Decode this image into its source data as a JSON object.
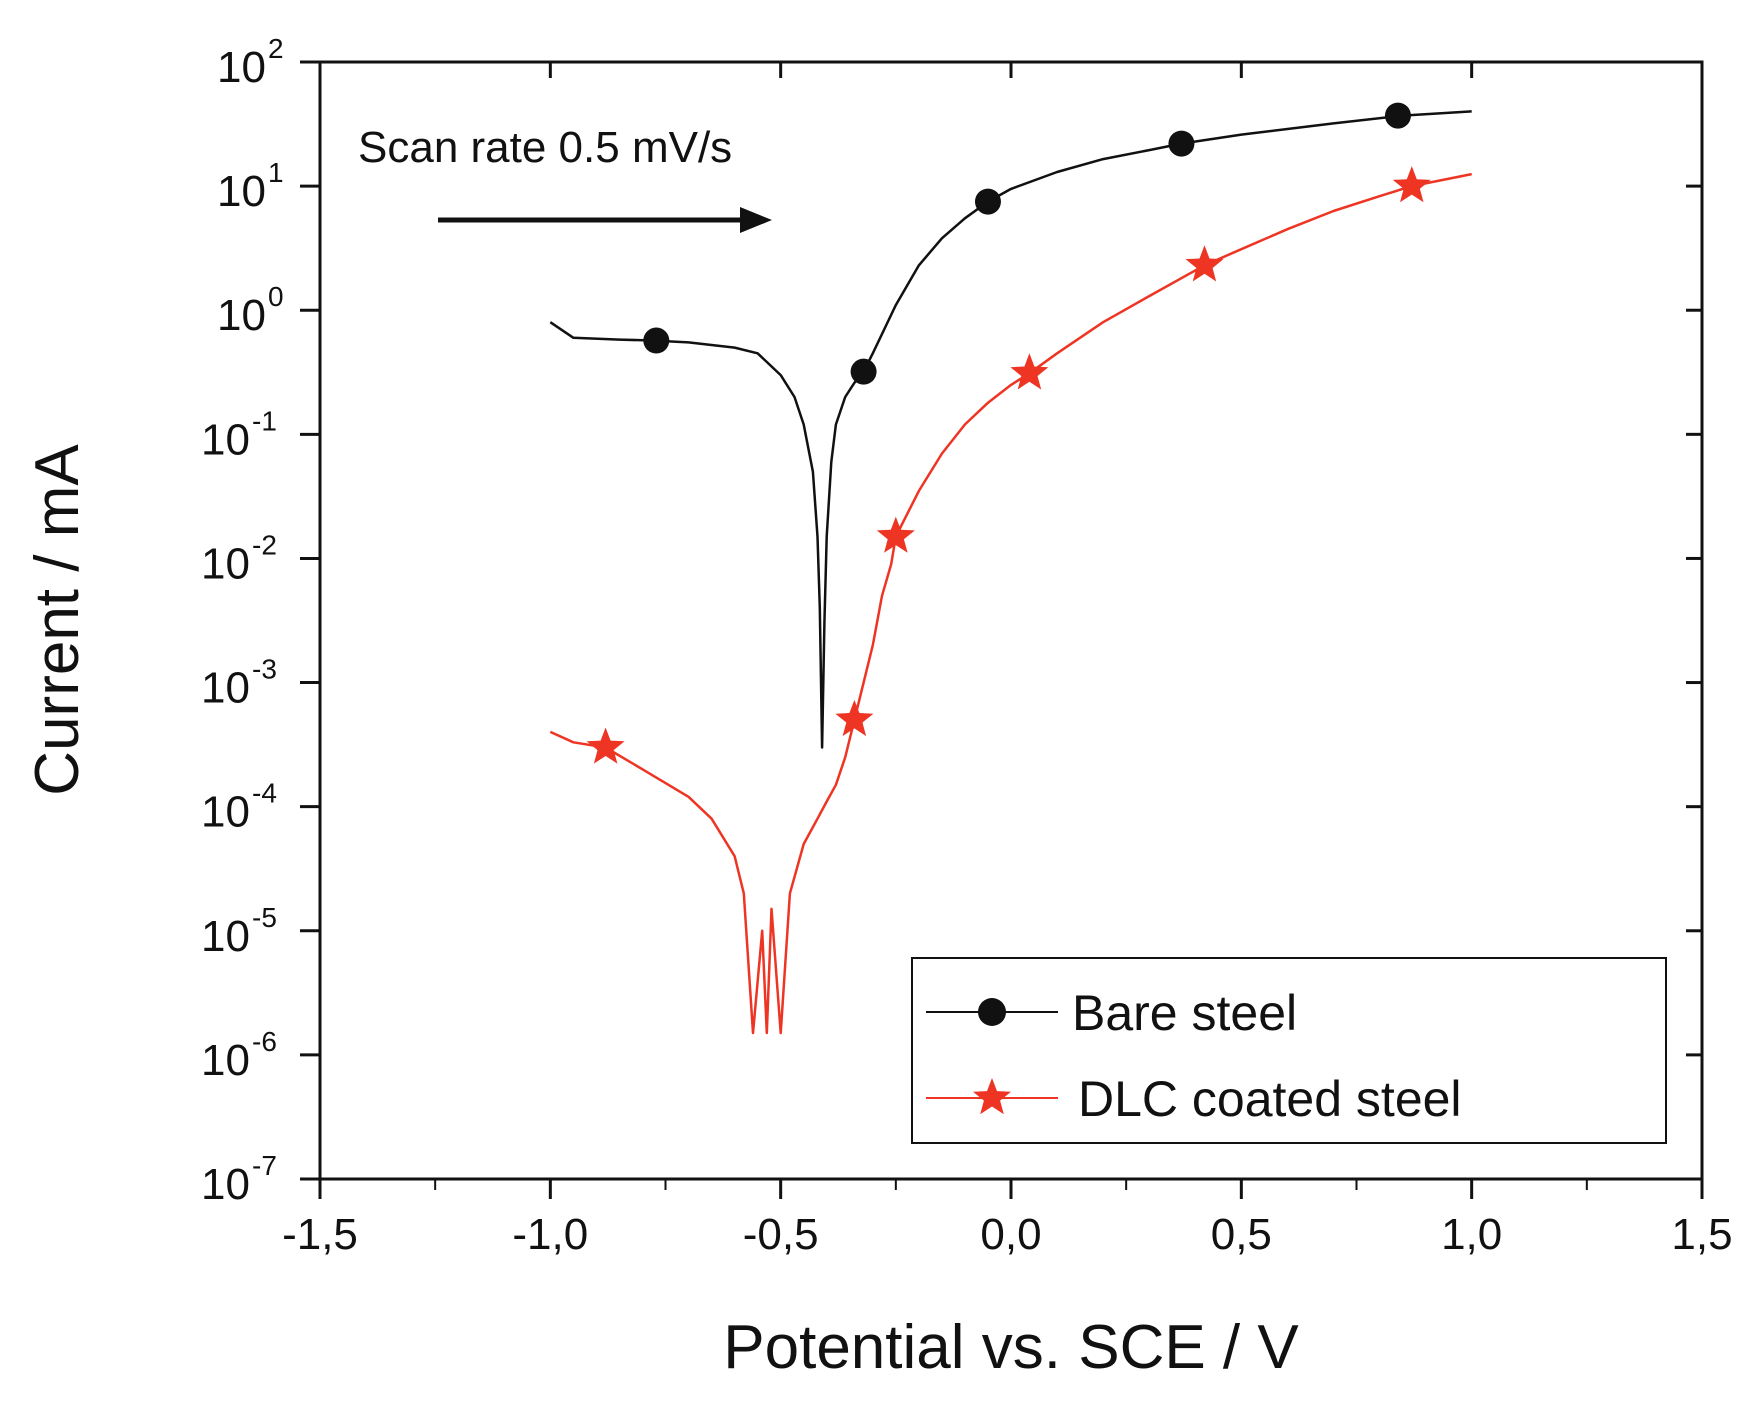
{
  "chart_data": {
    "type": "line",
    "title": "",
    "xlabel": "Potential vs. SCE / V",
    "ylabel": "Current / mA",
    "xlim": [
      -1.5,
      1.5
    ],
    "ylim_log10": [
      -7,
      2
    ],
    "y_scale": "log",
    "x_ticks": [
      -1.5,
      -1.0,
      -0.5,
      0.0,
      0.5,
      1.0,
      1.5
    ],
    "x_tick_labels": [
      "-1,5",
      "-1,0",
      "-0,5",
      "0,0",
      "0,5",
      "1,0",
      "1,5"
    ],
    "y_tick_base": "10",
    "y_tick_exponents": [
      "-7",
      "-6",
      "-5",
      "-4",
      "-3",
      "-2",
      "-1",
      "0",
      "1",
      "2"
    ],
    "annotation": "Scan rate 0.5 mV/s",
    "legend_position": "bottom-right",
    "series": [
      {
        "name": "Bare steel",
        "color": "#111111",
        "marker": "circle",
        "x": [
          -1.0,
          -0.95,
          -0.85,
          -0.78,
          -0.7,
          -0.6,
          -0.55,
          -0.5,
          -0.47,
          -0.45,
          -0.43,
          -0.42,
          -0.415,
          -0.41,
          -0.405,
          -0.4,
          -0.39,
          -0.38,
          -0.36,
          -0.34,
          -0.32,
          -0.3,
          -0.25,
          -0.2,
          -0.15,
          -0.1,
          -0.05,
          0.0,
          0.1,
          0.2,
          0.3,
          0.37,
          0.5,
          0.7,
          0.85,
          1.0
        ],
        "y": [
          0.8,
          0.6,
          0.58,
          0.57,
          0.55,
          0.5,
          0.45,
          0.3,
          0.2,
          0.12,
          0.05,
          0.015,
          0.004,
          0.0003,
          0.003,
          0.015,
          0.06,
          0.12,
          0.2,
          0.26,
          0.32,
          0.45,
          1.1,
          2.3,
          3.8,
          5.5,
          7.5,
          9.5,
          13,
          16.5,
          19.5,
          22,
          26,
          32,
          37,
          40
        ],
        "marker_x": [
          -0.77,
          -0.32,
          -0.05,
          0.37,
          0.84
        ],
        "marker_y": [
          0.57,
          0.32,
          7.5,
          22,
          37
        ]
      },
      {
        "name": "DLC coated steel",
        "color": "#ee3524",
        "marker": "star",
        "x": [
          -1.0,
          -0.95,
          -0.88,
          -0.8,
          -0.7,
          -0.65,
          -0.6,
          -0.58,
          -0.56,
          -0.54,
          -0.53,
          -0.52,
          -0.5,
          -0.48,
          -0.45,
          -0.42,
          -0.4,
          -0.38,
          -0.36,
          -0.34,
          -0.32,
          -0.3,
          -0.28,
          -0.26,
          -0.25,
          -0.22,
          -0.2,
          -0.15,
          -0.1,
          -0.05,
          0.0,
          0.04,
          0.1,
          0.2,
          0.3,
          0.42,
          0.5,
          0.6,
          0.7,
          0.8,
          0.87,
          1.0
        ],
        "y": [
          0.0004,
          0.00033,
          0.0003,
          0.0002,
          0.00012,
          8e-05,
          4e-05,
          2e-05,
          1.5e-06,
          1e-05,
          1.5e-06,
          1.5e-05,
          1.5e-06,
          2e-05,
          5e-05,
          8e-05,
          0.00011,
          0.00015,
          0.00025,
          0.0005,
          0.001,
          0.002,
          0.005,
          0.009,
          0.015,
          0.025,
          0.035,
          0.07,
          0.12,
          0.18,
          0.25,
          0.31,
          0.45,
          0.8,
          1.3,
          2.3,
          3.1,
          4.5,
          6.3,
          8.3,
          10,
          12.5
        ],
        "marker_x": [
          -0.88,
          -0.34,
          -0.25,
          0.04,
          0.42,
          0.87
        ],
        "marker_y": [
          0.0003,
          0.0005,
          0.015,
          0.31,
          2.3,
          10
        ]
      }
    ]
  }
}
